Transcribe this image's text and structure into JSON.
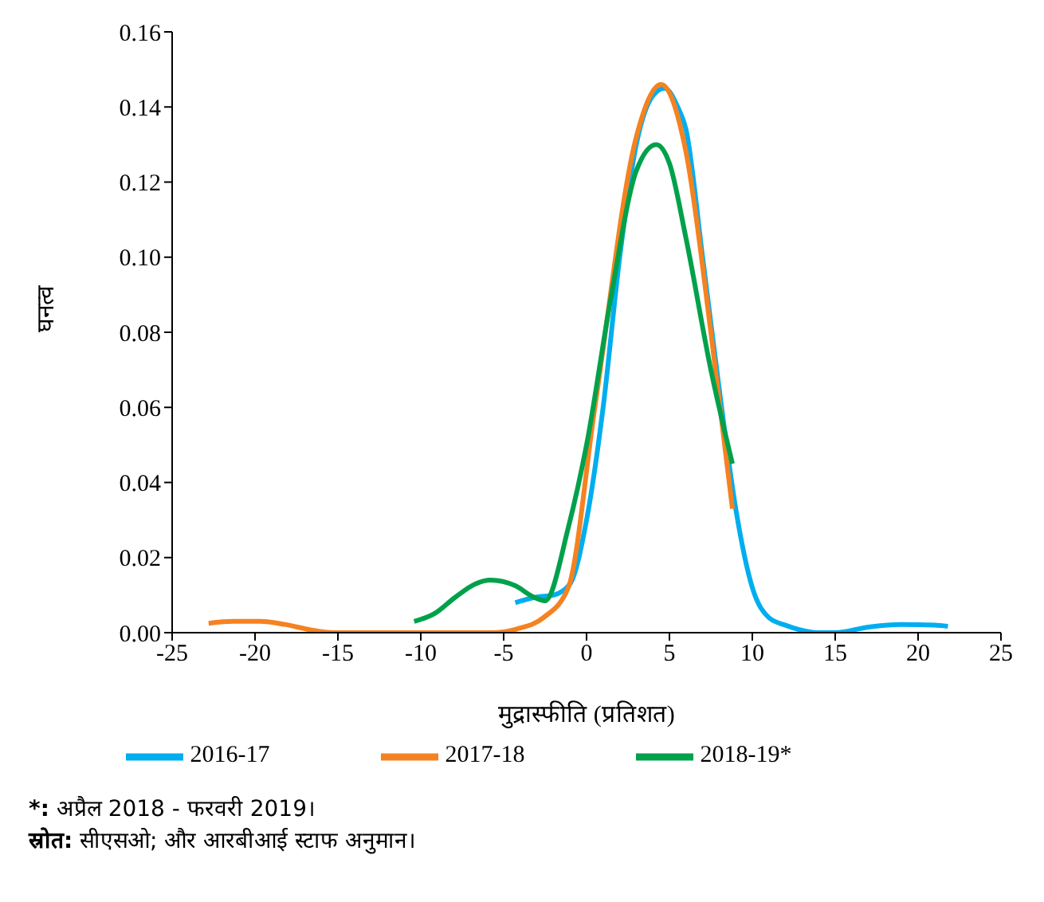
{
  "chart_data": {
    "type": "line",
    "xlabel": "मुद्रास्फीति (प्रतिशत)",
    "ylabel": "घनत्व",
    "xlim": [
      -25,
      25
    ],
    "xticks": [
      -25,
      -20,
      -15,
      -10,
      -5,
      0,
      5,
      10,
      15,
      20,
      25
    ],
    "ylim": [
      0,
      0.16
    ],
    "yticks": [
      {
        "value": 0,
        "label": "0.00"
      },
      {
        "value": 0.02,
        "label": "0.02"
      },
      {
        "value": 0.04,
        "label": "0.04"
      },
      {
        "value": 0.06,
        "label": "0.06"
      },
      {
        "value": 0.08,
        "label": "0.08"
      },
      {
        "value": 0.1,
        "label": "0.10"
      },
      {
        "value": 0.12,
        "label": "0.12"
      },
      {
        "value": 0.14,
        "label": "0.14"
      },
      {
        "value": 0.16,
        "label": "0.16"
      }
    ],
    "grid": false,
    "legend": "bottom",
    "marker": "none",
    "line_style": "solid",
    "series": [
      {
        "name": "2016-17",
        "color": "#00aeef",
        "x": [
          -4.3,
          -3,
          -2,
          -1,
          0,
          1,
          2,
          3,
          4,
          4.7,
          5.5,
          6,
          7,
          8,
          9,
          10,
          11,
          12,
          14,
          15,
          17,
          19,
          21,
          21.8
        ],
        "values": [
          0.008,
          0.0095,
          0.01,
          0.013,
          0.03,
          0.06,
          0.1,
          0.13,
          0.143,
          0.145,
          0.14,
          0.134,
          0.1,
          0.065,
          0.033,
          0.012,
          0.004,
          0.002,
          0,
          0,
          0.0015,
          0.0022,
          0.002,
          0.0017
        ]
      },
      {
        "name": "2017-18",
        "color": "#f58220",
        "x": [
          -22.8,
          -21.3,
          -19.7,
          -18.2,
          -16.7,
          -15.3,
          -10,
          -5.7,
          -4.2,
          -2.6,
          -1.1,
          0.5,
          3,
          4.5,
          6,
          7.5,
          8.8
        ],
        "values": [
          0.0025,
          0.003,
          0.003,
          0.0022,
          0.0008,
          0,
          0,
          0,
          0.001,
          0.004,
          0.012,
          0.06,
          0.132,
          0.146,
          0.128,
          0.08,
          0.033
        ]
      },
      {
        "name": "2018-19*",
        "color": "#00a14b",
        "x": [
          -10.4,
          -9.2,
          -7.9,
          -6.7,
          -5.8,
          -4.3,
          -3.2,
          -2.5,
          -1.1,
          0,
          1.5,
          3,
          4.2,
          5,
          6,
          7.5,
          8.8
        ],
        "values": [
          0.003,
          0.005,
          0.0095,
          0.013,
          0.014,
          0.0125,
          0.0095,
          0.0085,
          0.028,
          0.05,
          0.09,
          0.123,
          0.13,
          0.125,
          0.105,
          0.07,
          0.045
        ]
      }
    ],
    "annotations": [
      "*: अप्रैल 2018 - फरवरी 2019।",
      "स्रोत: सीएसओ; और आरबीआई स्टाफ अनुमान।"
    ]
  }
}
